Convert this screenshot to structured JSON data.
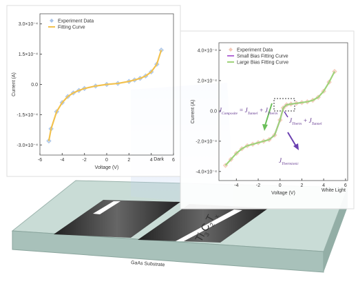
{
  "chart_data": [
    {
      "type": "line",
      "x_label": "Voltage (V)",
      "y_label": "Current (A)",
      "note": "Dark",
      "x": [
        -5.2,
        -5,
        -4.5,
        -4,
        -3.5,
        -3,
        -2.5,
        -2,
        -1,
        0,
        1,
        2,
        2.5,
        3,
        3.5,
        4,
        4.5,
        4.9
      ],
      "series": [
        {
          "name": "Experiment Data",
          "color": "#a9c4e8",
          "marker": "diamond",
          "values": [
            -0.00028,
            -0.00022,
            -0.000135,
            -9e-05,
            -6e-05,
            -4.2e-05,
            -3e-05,
            -2e-05,
            -8e-06,
            0,
            5e-06,
            1.5e-05,
            2.2e-05,
            3e-05,
            4.2e-05,
            6.2e-05,
            0.0001,
            0.00017
          ]
        },
        {
          "name": "Fitting Curve",
          "color": "#f2c14e",
          "values": [
            -0.00028,
            -0.00022,
            -0.000135,
            -9e-05,
            -6e-05,
            -4.2e-05,
            -3e-05,
            -2e-05,
            -8e-06,
            0,
            5e-06,
            1.5e-05,
            2.2e-05,
            3e-05,
            4.2e-05,
            6.2e-05,
            0.0001,
            0.00017
          ]
        }
      ],
      "xlim": [
        -6,
        6
      ],
      "xticks": [
        -6,
        -4,
        -2,
        0,
        2,
        4,
        6
      ],
      "ylim": [
        -0.00035,
        0.00035
      ],
      "yticks": [
        {
          "value": -0.0003,
          "label": "-3.0×10⁻⁴"
        },
        {
          "value": -0.00015,
          "label": "-1.5×10⁻⁴"
        },
        {
          "value": 0,
          "label": "0.0"
        },
        {
          "value": 0.00015,
          "label": "1.5×10⁻⁴"
        },
        {
          "value": 0.0003,
          "label": "3.0×10⁻⁴"
        }
      ],
      "legend": "upper left"
    },
    {
      "type": "line",
      "x_label": "Voltage (V)",
      "y_label": "Current (A)",
      "note": "White Light",
      "x": [
        -5,
        -4.5,
        -4,
        -3.5,
        -3,
        -2.5,
        -2,
        -1.5,
        -1,
        -0.5,
        0,
        0.3,
        0.6,
        1,
        1.5,
        2,
        2.5,
        3,
        3.5,
        4,
        4.5,
        5
      ],
      "series": [
        {
          "name": "Experiment Data",
          "color": "#f4c9b8",
          "marker": "diamond",
          "values": [
            -0.00036,
            -0.00032,
            -0.00028,
            -0.00025,
            -0.00023,
            -0.00022,
            -0.00021,
            -0.0002,
            -0.00019,
            -0.00016,
            -6e-05,
            2e-05,
            4e-05,
            4.5e-05,
            5e-05,
            5.5e-05,
            6e-05,
            7e-05,
            9e-05,
            0.00013,
            0.00019,
            0.00026
          ]
        },
        {
          "name": "Small Bias Fitting Curve",
          "color": "#b36bd6",
          "values": [
            null,
            null,
            null,
            null,
            null,
            null,
            null,
            null,
            -0.00019,
            -0.00016,
            -6e-05,
            2e-05,
            4e-05,
            4.5e-05,
            5e-05,
            5.5e-05,
            null,
            null,
            null,
            null,
            null,
            null
          ]
        },
        {
          "name": "Large Bias Fitting Curve",
          "color": "#9fd27a",
          "values": [
            -0.00036,
            -0.00032,
            -0.00028,
            -0.00025,
            -0.00023,
            -0.00022,
            -0.00021,
            -0.0002,
            -0.00019,
            -0.00016,
            -6e-05,
            2e-05,
            4e-05,
            4.5e-05,
            5e-05,
            5.5e-05,
            6e-05,
            7e-05,
            9e-05,
            0.00013,
            0.00019,
            0.00026
          ]
        }
      ],
      "xlim": [
        -5.6,
        6.2
      ],
      "xticks": [
        -4,
        -2,
        0,
        2,
        4,
        6
      ],
      "ylim": [
        -0.00046,
        0.00045
      ],
      "yticks": [
        {
          "value": -0.0004,
          "label": "-4.0×10⁻⁴"
        },
        {
          "value": -0.0002,
          "label": "-2.0×10⁻⁴"
        },
        {
          "value": 0,
          "label": "0.0"
        },
        {
          "value": 0.0002,
          "label": "2.0×10⁻⁴"
        },
        {
          "value": 0.0004,
          "label": "4.0×10⁻⁴"
        }
      ],
      "legend": "upper left",
      "annotations": [
        {
          "parts": [
            {
              "text": "J"
            },
            {
              "sub": "Composite"
            },
            {
              "text": " = "
            },
            {
              "text": "J"
            },
            {
              "sub": "Tunnel"
            },
            {
              "text": " + "
            },
            {
              "text": "J"
            },
            {
              "sub": "Therm"
            }
          ]
        },
        {
          "parts": [
            {
              "text": "J"
            },
            {
              "sub": "Therm"
            },
            {
              "text": " + "
            },
            {
              "text": "J"
            },
            {
              "sub": "Tunnel"
            }
          ]
        },
        {
          "parts": [
            {
              "text": "J"
            },
            {
              "sub": "Thermionic"
            }
          ]
        }
      ]
    }
  ],
  "illustration": {
    "film_label": [
      {
        "text": "Ti"
      },
      {
        "sub": "3"
      },
      {
        "text": "C"
      },
      {
        "sub": "2"
      },
      {
        "text": "T"
      },
      {
        "sub": "x"
      }
    ],
    "substrate_label": "GaAs Substrate"
  }
}
